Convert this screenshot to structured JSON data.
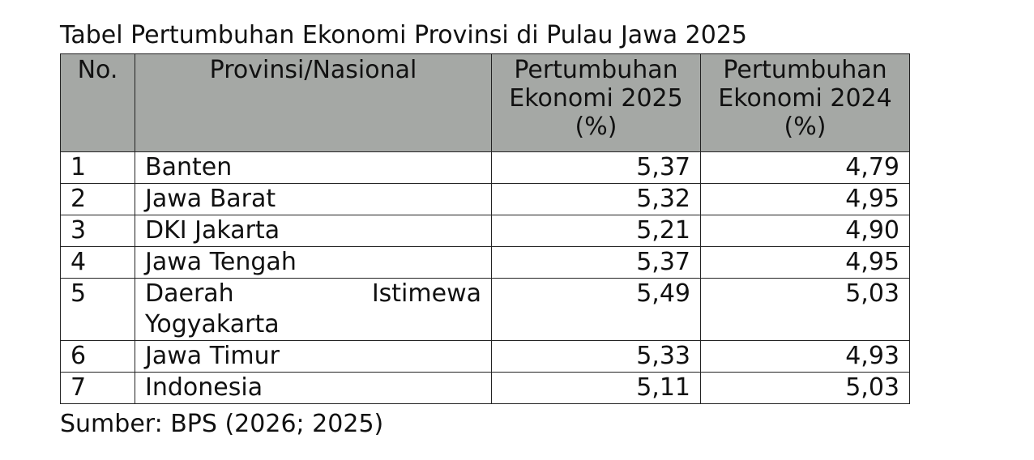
{
  "title": "Tabel Pertumbuhan Ekonomi Provinsi di Pulau Jawa 2025",
  "table": {
    "headers": {
      "no": "No.",
      "province": "Provinsi/Nasional",
      "growth_2025": "Pertumbuhan Ekonomi 2025 (%)",
      "growth_2024": "Pertumbuhan Ekonomi 2024 (%)"
    },
    "rows": [
      {
        "no": "1",
        "province": "Banten",
        "growth_2025": "5,37",
        "growth_2024": "4,79"
      },
      {
        "no": "2",
        "province": "Jawa Barat",
        "growth_2025": "5,32",
        "growth_2024": "4,95"
      },
      {
        "no": "3",
        "province": "DKI Jakarta",
        "growth_2025": "5,21",
        "growth_2024": "4,90"
      },
      {
        "no": "4",
        "province": "Jawa Tengah",
        "growth_2025": "5,37",
        "growth_2024": "4,95"
      },
      {
        "no": "5",
        "province": "Daerah Istimewa Yogyakarta",
        "growth_2025": "5,49",
        "growth_2024": "5,03"
      },
      {
        "no": "6",
        "province": "Jawa Timur",
        "growth_2025": "5,33",
        "growth_2024": "4,93"
      },
      {
        "no": "7",
        "province": "Indonesia",
        "growth_2025": "5,11",
        "growth_2024": "5,03"
      }
    ]
  },
  "source": "Sumber: BPS (2026; 2025)"
}
